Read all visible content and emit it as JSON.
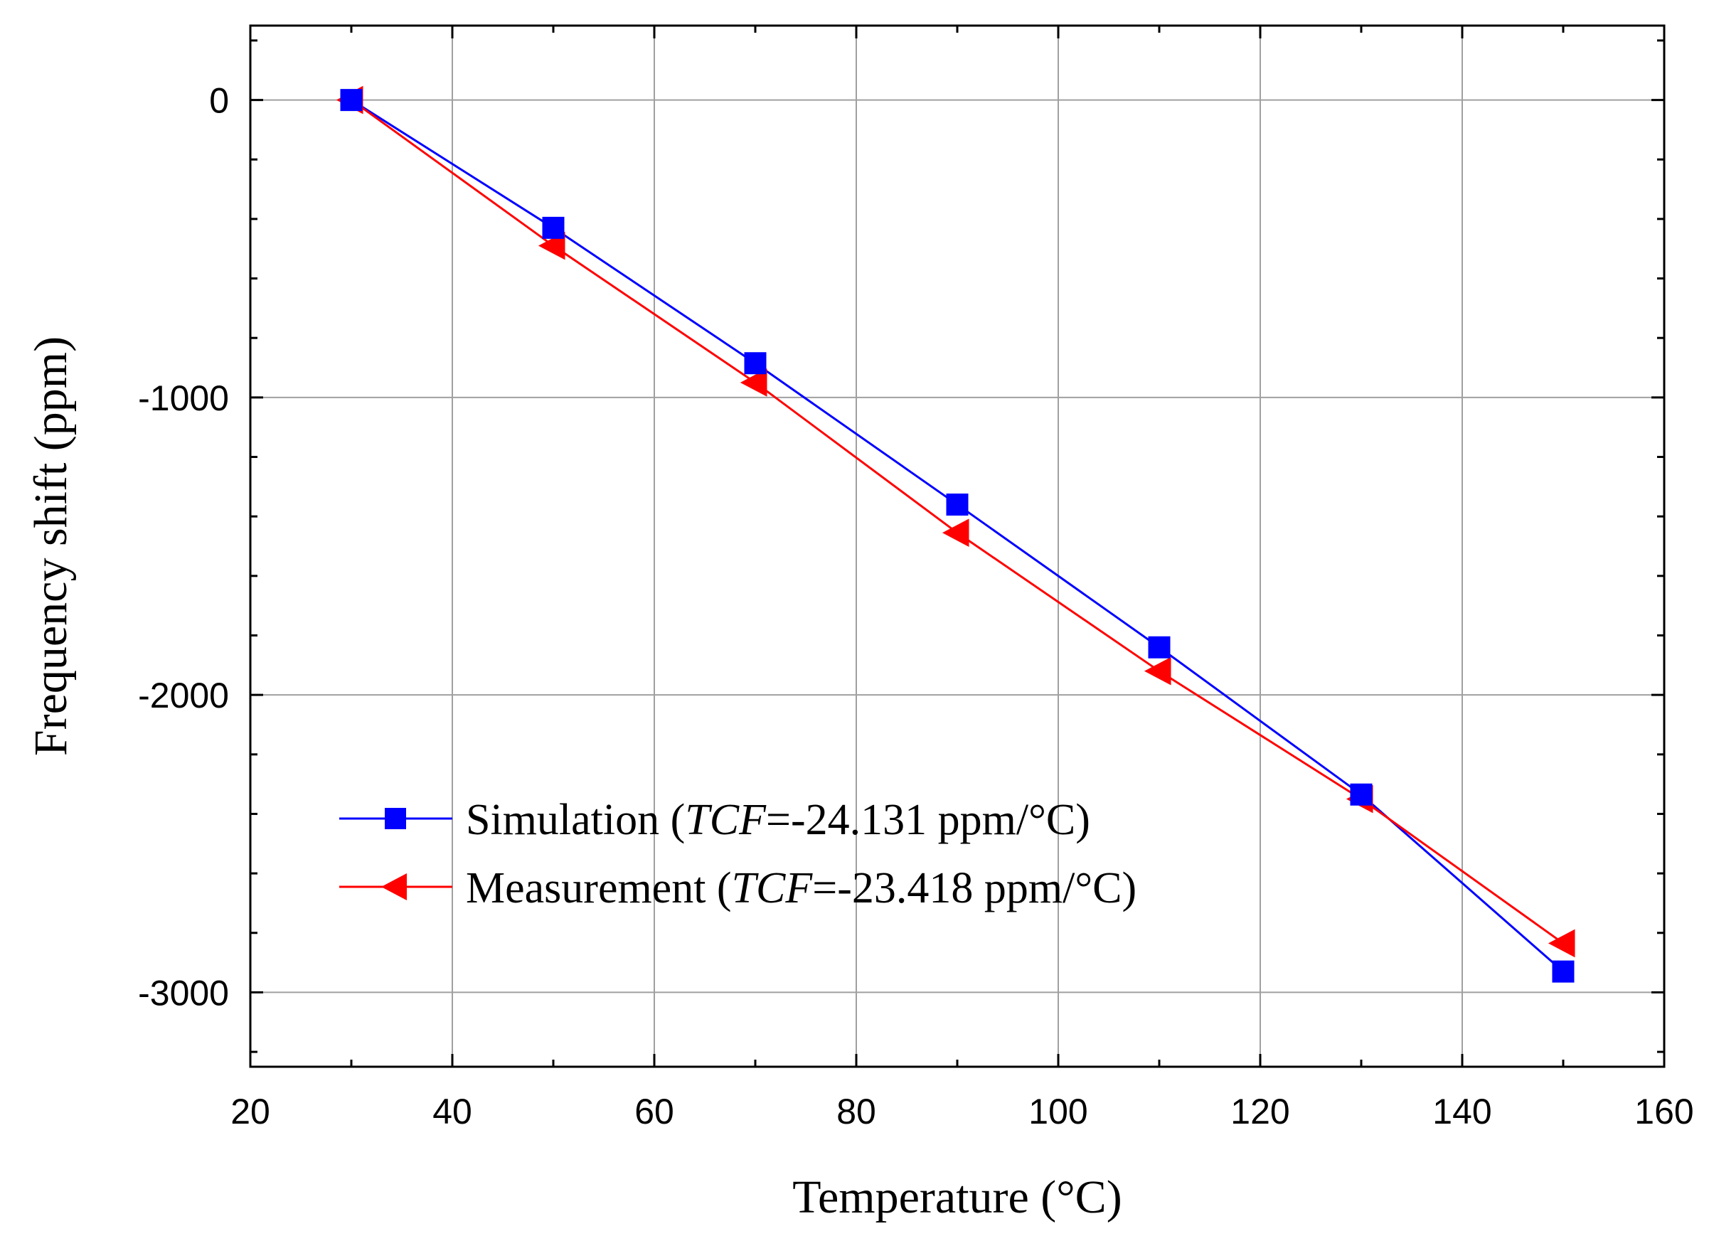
{
  "chart_data": {
    "type": "line",
    "title": "",
    "xlabel": "Temperature (°C)",
    "ylabel": "Frequency shift (ppm)",
    "xlim": [
      20,
      160
    ],
    "ylim": [
      -3250,
      250
    ],
    "xticks": [
      20,
      40,
      60,
      80,
      100,
      120,
      140,
      160
    ],
    "yticks": [
      0,
      -1000,
      -2000,
      -3000
    ],
    "xtick_labels": [
      "20",
      "40",
      "60",
      "80",
      "100",
      "120",
      "140",
      "160"
    ],
    "ytick_labels": [
      "0",
      "-1000",
      "-2000",
      "-3000"
    ],
    "grid": true,
    "legend_position": "bottom-left",
    "x": [
      30,
      50,
      70,
      90,
      110,
      130,
      150
    ],
    "series": [
      {
        "name": "Simulation",
        "legend_prefix": "Simulation (",
        "legend_var": "TCF",
        "legend_suffix": "=-24.131 ppm/°C)",
        "color": "#0000ff",
        "marker": "square",
        "values": [
          0,
          -430,
          -885,
          -1360,
          -1840,
          -2335,
          -2930
        ]
      },
      {
        "name": "Measurement",
        "legend_prefix": "Measurement (",
        "legend_var": "TCF",
        "legend_suffix": "=-23.418 ppm/°C)",
        "color": "#ff0000",
        "marker": "triangle-left",
        "values": [
          0,
          -490,
          -950,
          -1455,
          -1920,
          -2350,
          -2835
        ]
      }
    ]
  }
}
